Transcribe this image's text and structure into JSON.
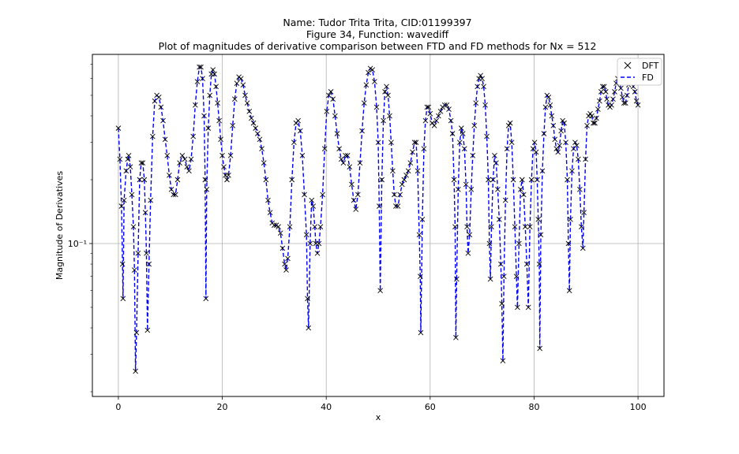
{
  "chart_data": {
    "type": "line",
    "title_lines": [
      "Name: Tudor Trita Trita, CID:01199397",
      "Figure 34, Function: wavediff",
      "Plot of magnitudes of derivative comparison between FTD and FD methods for Nx = 512"
    ],
    "xlabel": "x",
    "ylabel": "Magnitude of Derivatives",
    "yscale": "log",
    "xlim": [
      -5,
      105
    ],
    "ylim": [
      0.019,
      0.78
    ],
    "x_ticks": [
      0,
      20,
      40,
      60,
      80,
      100
    ],
    "y_ticks": [
      {
        "value": 0.1,
        "label": "10⁻¹"
      }
    ],
    "grid": true,
    "legend": {
      "position": "top-right",
      "entries": [
        "DFT",
        "FD"
      ]
    },
    "series": [
      {
        "name": "DFT",
        "style": "x-marker",
        "color": "#000000"
      },
      {
        "name": "FD",
        "style": "dashed-line",
        "color": "#0000ff"
      }
    ],
    "samples": [
      [
        0.0,
        0.35
      ],
      [
        0.3,
        0.25
      ],
      [
        0.6,
        0.15
      ],
      [
        0.8,
        0.08
      ],
      [
        0.9,
        0.055
      ],
      [
        1.1,
        0.16
      ],
      [
        1.5,
        0.22
      ],
      [
        1.8,
        0.25
      ],
      [
        2.0,
        0.26
      ],
      [
        2.3,
        0.23
      ],
      [
        2.6,
        0.17
      ],
      [
        2.9,
        0.12
      ],
      [
        3.1,
        0.075
      ],
      [
        3.3,
        0.025
      ],
      [
        3.5,
        0.038
      ],
      [
        3.8,
        0.09
      ],
      [
        4.1,
        0.2
      ],
      [
        4.4,
        0.24
      ],
      [
        4.7,
        0.24
      ],
      [
        5.0,
        0.2
      ],
      [
        5.2,
        0.14
      ],
      [
        5.4,
        0.09
      ],
      [
        5.6,
        0.039
      ],
      [
        5.9,
        0.08
      ],
      [
        6.2,
        0.16
      ],
      [
        6.6,
        0.32
      ],
      [
        7.0,
        0.47
      ],
      [
        7.4,
        0.5
      ],
      [
        7.8,
        0.49
      ],
      [
        8.2,
        0.44
      ],
      [
        8.6,
        0.38
      ],
      [
        9.0,
        0.31
      ],
      [
        9.4,
        0.26
      ],
      [
        9.8,
        0.21
      ],
      [
        10.2,
        0.18
      ],
      [
        10.6,
        0.17
      ],
      [
        11.0,
        0.17
      ],
      [
        11.4,
        0.2
      ],
      [
        11.8,
        0.24
      ],
      [
        12.3,
        0.26
      ],
      [
        12.8,
        0.25
      ],
      [
        13.2,
        0.23
      ],
      [
        13.6,
        0.22
      ],
      [
        14.0,
        0.25
      ],
      [
        14.4,
        0.32
      ],
      [
        14.8,
        0.45
      ],
      [
        15.2,
        0.58
      ],
      [
        15.6,
        0.68
      ],
      [
        15.9,
        0.68
      ],
      [
        16.2,
        0.6
      ],
      [
        16.5,
        0.4
      ],
      [
        16.7,
        0.2
      ],
      [
        16.85,
        0.055
      ],
      [
        17.0,
        0.18
      ],
      [
        17.3,
        0.35
      ],
      [
        17.6,
        0.5
      ],
      [
        17.9,
        0.63
      ],
      [
        18.2,
        0.66
      ],
      [
        18.5,
        0.63
      ],
      [
        18.8,
        0.55
      ],
      [
        19.1,
        0.46
      ],
      [
        19.4,
        0.38
      ],
      [
        19.7,
        0.31
      ],
      [
        20.0,
        0.26
      ],
      [
        20.3,
        0.23
      ],
      [
        20.6,
        0.21
      ],
      [
        20.9,
        0.2
      ],
      [
        21.2,
        0.21
      ],
      [
        21.6,
        0.26
      ],
      [
        22.0,
        0.36
      ],
      [
        22.4,
        0.48
      ],
      [
        22.8,
        0.57
      ],
      [
        23.2,
        0.61
      ],
      [
        23.6,
        0.6
      ],
      [
        24.0,
        0.56
      ],
      [
        24.4,
        0.5
      ],
      [
        24.8,
        0.46
      ],
      [
        25.2,
        0.42
      ],
      [
        25.6,
        0.39
      ],
      [
        26.0,
        0.37
      ],
      [
        26.4,
        0.35
      ],
      [
        26.8,
        0.33
      ],
      [
        27.2,
        0.31
      ],
      [
        27.6,
        0.28
      ],
      [
        28.0,
        0.24
      ],
      [
        28.4,
        0.2
      ],
      [
        28.8,
        0.16
      ],
      [
        29.2,
        0.14
      ],
      [
        29.6,
        0.125
      ],
      [
        30.0,
        0.122
      ],
      [
        30.4,
        0.122
      ],
      [
        30.8,
        0.12
      ],
      [
        31.2,
        0.112
      ],
      [
        31.6,
        0.095
      ],
      [
        32.0,
        0.08
      ],
      [
        32.3,
        0.075
      ],
      [
        32.6,
        0.085
      ],
      [
        33.0,
        0.12
      ],
      [
        33.4,
        0.2
      ],
      [
        33.8,
        0.3
      ],
      [
        34.2,
        0.37
      ],
      [
        34.6,
        0.38
      ],
      [
        35.0,
        0.34
      ],
      [
        35.4,
        0.26
      ],
      [
        35.8,
        0.17
      ],
      [
        36.2,
        0.11
      ],
      [
        36.4,
        0.055
      ],
      [
        36.6,
        0.04
      ],
      [
        36.9,
        0.1
      ],
      [
        37.2,
        0.16
      ],
      [
        37.5,
        0.15
      ],
      [
        37.8,
        0.12
      ],
      [
        38.0,
        0.1
      ],
      [
        38.3,
        0.09
      ],
      [
        38.6,
        0.1
      ],
      [
        38.9,
        0.12
      ],
      [
        39.3,
        0.17
      ],
      [
        39.7,
        0.28
      ],
      [
        40.1,
        0.42
      ],
      [
        40.5,
        0.5
      ],
      [
        40.9,
        0.52
      ],
      [
        41.3,
        0.48
      ],
      [
        41.7,
        0.4
      ],
      [
        42.1,
        0.33
      ],
      [
        42.5,
        0.28
      ],
      [
        42.9,
        0.25
      ],
      [
        43.3,
        0.24
      ],
      [
        43.7,
        0.26
      ],
      [
        44.1,
        0.26
      ],
      [
        44.5,
        0.23
      ],
      [
        44.9,
        0.19
      ],
      [
        45.3,
        0.16
      ],
      [
        45.7,
        0.145
      ],
      [
        46.1,
        0.17
      ],
      [
        46.5,
        0.24
      ],
      [
        46.9,
        0.34
      ],
      [
        47.3,
        0.46
      ],
      [
        47.7,
        0.56
      ],
      [
        48.1,
        0.64
      ],
      [
        48.5,
        0.67
      ],
      [
        48.9,
        0.66
      ],
      [
        49.3,
        0.58
      ],
      [
        49.7,
        0.44
      ],
      [
        50.0,
        0.3
      ],
      [
        50.2,
        0.15
      ],
      [
        50.4,
        0.06
      ],
      [
        50.7,
        0.2
      ],
      [
        51.0,
        0.38
      ],
      [
        51.3,
        0.52
      ],
      [
        51.6,
        0.55
      ],
      [
        51.9,
        0.5
      ],
      [
        52.2,
        0.4
      ],
      [
        52.5,
        0.3
      ],
      [
        52.8,
        0.22
      ],
      [
        53.1,
        0.17
      ],
      [
        53.4,
        0.15
      ],
      [
        53.8,
        0.15
      ],
      [
        54.2,
        0.17
      ],
      [
        54.6,
        0.19
      ],
      [
        55.0,
        0.2
      ],
      [
        55.4,
        0.21
      ],
      [
        55.8,
        0.22
      ],
      [
        56.2,
        0.24
      ],
      [
        56.6,
        0.27
      ],
      [
        57.0,
        0.3
      ],
      [
        57.3,
        0.3
      ],
      [
        57.6,
        0.22
      ],
      [
        57.9,
        0.11
      ],
      [
        58.1,
        0.07
      ],
      [
        58.2,
        0.038
      ],
      [
        58.5,
        0.13
      ],
      [
        58.8,
        0.28
      ],
      [
        59.1,
        0.38
      ],
      [
        59.4,
        0.44
      ],
      [
        59.7,
        0.44
      ],
      [
        60.0,
        0.41
      ],
      [
        60.4,
        0.37
      ],
      [
        60.8,
        0.36
      ],
      [
        61.2,
        0.38
      ],
      [
        61.6,
        0.4
      ],
      [
        62.0,
        0.42
      ],
      [
        62.4,
        0.44
      ],
      [
        62.8,
        0.45
      ],
      [
        63.2,
        0.45
      ],
      [
        63.6,
        0.43
      ],
      [
        64.0,
        0.38
      ],
      [
        64.3,
        0.33
      ],
      [
        64.6,
        0.2
      ],
      [
        64.8,
        0.12
      ],
      [
        64.95,
        0.036
      ],
      [
        65.1,
        0.068
      ],
      [
        65.4,
        0.18
      ],
      [
        65.7,
        0.3
      ],
      [
        66.0,
        0.35
      ],
      [
        66.3,
        0.33
      ],
      [
        66.6,
        0.28
      ],
      [
        66.9,
        0.19
      ],
      [
        67.1,
        0.12
      ],
      [
        67.3,
        0.09
      ],
      [
        67.6,
        0.11
      ],
      [
        67.9,
        0.18
      ],
      [
        68.2,
        0.26
      ],
      [
        68.5,
        0.36
      ],
      [
        68.8,
        0.46
      ],
      [
        69.1,
        0.55
      ],
      [
        69.4,
        0.6
      ],
      [
        69.7,
        0.62
      ],
      [
        70.0,
        0.6
      ],
      [
        70.3,
        0.55
      ],
      [
        70.6,
        0.45
      ],
      [
        70.9,
        0.32
      ],
      [
        71.2,
        0.2
      ],
      [
        71.4,
        0.1
      ],
      [
        71.6,
        0.068
      ],
      [
        71.8,
        0.12
      ],
      [
        72.1,
        0.2
      ],
      [
        72.4,
        0.26
      ],
      [
        72.7,
        0.24
      ],
      [
        73.0,
        0.18
      ],
      [
        73.3,
        0.13
      ],
      [
        73.6,
        0.08
      ],
      [
        73.8,
        0.052
      ],
      [
        74.0,
        0.028
      ],
      [
        74.2,
        0.07
      ],
      [
        74.5,
        0.16
      ],
      [
        74.8,
        0.28
      ],
      [
        75.1,
        0.36
      ],
      [
        75.4,
        0.37
      ],
      [
        75.7,
        0.3
      ],
      [
        76.0,
        0.2
      ],
      [
        76.3,
        0.12
      ],
      [
        76.6,
        0.07
      ],
      [
        76.8,
        0.05
      ],
      [
        77.1,
        0.1
      ],
      [
        77.4,
        0.18
      ],
      [
        77.7,
        0.2
      ],
      [
        78.0,
        0.17
      ],
      [
        78.3,
        0.12
      ],
      [
        78.6,
        0.08
      ],
      [
        78.9,
        0.05
      ],
      [
        79.2,
        0.12
      ],
      [
        79.5,
        0.2
      ],
      [
        79.8,
        0.28
      ],
      [
        80.1,
        0.3
      ],
      [
        80.4,
        0.27
      ],
      [
        80.6,
        0.2
      ],
      [
        80.8,
        0.13
      ],
      [
        81.0,
        0.08
      ],
      [
        81.1,
        0.032
      ],
      [
        81.3,
        0.11
      ],
      [
        81.6,
        0.22
      ],
      [
        81.9,
        0.33
      ],
      [
        82.2,
        0.44
      ],
      [
        82.5,
        0.5
      ],
      [
        82.8,
        0.49
      ],
      [
        83.1,
        0.45
      ],
      [
        83.4,
        0.4
      ],
      [
        83.7,
        0.36
      ],
      [
        84.0,
        0.31
      ],
      [
        84.3,
        0.28
      ],
      [
        84.6,
        0.27
      ],
      [
        84.9,
        0.29
      ],
      [
        85.2,
        0.34
      ],
      [
        85.5,
        0.38
      ],
      [
        85.8,
        0.37
      ],
      [
        86.1,
        0.3
      ],
      [
        86.4,
        0.2
      ],
      [
        86.6,
        0.1
      ],
      [
        86.8,
        0.06
      ],
      [
        87.0,
        0.13
      ],
      [
        87.3,
        0.22
      ],
      [
        87.6,
        0.28
      ],
      [
        87.9,
        0.3
      ],
      [
        88.2,
        0.29
      ],
      [
        88.5,
        0.25
      ],
      [
        88.8,
        0.18
      ],
      [
        89.1,
        0.12
      ],
      [
        89.4,
        0.095
      ],
      [
        89.6,
        0.14
      ],
      [
        89.9,
        0.25
      ],
      [
        90.2,
        0.36
      ],
      [
        90.5,
        0.4
      ],
      [
        90.8,
        0.41
      ],
      [
        91.1,
        0.4
      ],
      [
        91.4,
        0.37
      ],
      [
        91.7,
        0.37
      ],
      [
        92.0,
        0.39
      ],
      [
        92.3,
        0.43
      ],
      [
        92.6,
        0.47
      ],
      [
        92.9,
        0.52
      ],
      [
        93.2,
        0.55
      ],
      [
        93.5,
        0.55
      ],
      [
        93.8,
        0.52
      ],
      [
        94.0,
        0.48
      ],
      [
        94.3,
        0.45
      ],
      [
        94.6,
        0.44
      ],
      [
        94.9,
        0.45
      ],
      [
        95.2,
        0.48
      ],
      [
        95.5,
        0.52
      ],
      [
        95.8,
        0.57
      ],
      [
        96.1,
        0.6
      ],
      [
        96.4,
        0.59
      ],
      [
        96.7,
        0.54
      ],
      [
        97.0,
        0.49
      ],
      [
        97.3,
        0.46
      ],
      [
        97.6,
        0.46
      ],
      [
        97.9,
        0.5
      ],
      [
        98.2,
        0.56
      ],
      [
        98.5,
        0.6
      ],
      [
        98.8,
        0.59
      ],
      [
        99.1,
        0.55
      ],
      [
        99.4,
        0.52
      ],
      [
        99.7,
        0.47
      ],
      [
        100.0,
        0.45
      ]
    ]
  }
}
